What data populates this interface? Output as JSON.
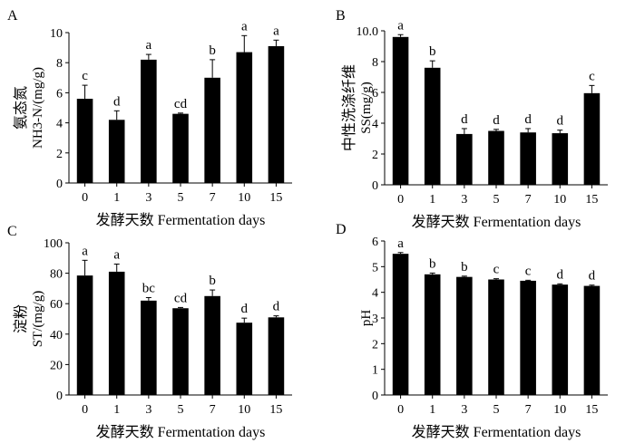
{
  "chart_data": [
    {
      "type": "bar",
      "panel_letter": "A",
      "ylabel_cn": "氨态氮",
      "ylabel_en": "NH3-N/(mg/g)",
      "xlabel": "发酵天数 Fermentation days",
      "categories": [
        "0",
        "1",
        "3",
        "5",
        "7",
        "10",
        "15"
      ],
      "values": [
        5.6,
        4.2,
        8.2,
        4.6,
        7.0,
        8.7,
        9.1
      ],
      "errors": [
        0.9,
        0.6,
        0.35,
        0.05,
        1.2,
        1.1,
        0.4
      ],
      "letters": [
        "c",
        "d",
        "a",
        "cd",
        "b",
        "a",
        "a"
      ],
      "ylim": [
        0,
        10
      ],
      "yticks": [
        "0",
        "2",
        "4",
        "6",
        "8",
        "10"
      ]
    },
    {
      "type": "bar",
      "panel_letter": "B",
      "ylabel_cn": "中性洗涤纤维",
      "ylabel_en": "SS(mg/g)",
      "xlabel": "发酵天数 Fermentation days",
      "categories": [
        "0",
        "1",
        "3",
        "5",
        "7",
        "10",
        "15"
      ],
      "values": [
        9.6,
        7.6,
        3.3,
        3.5,
        3.4,
        3.35,
        5.95
      ],
      "errors": [
        0.15,
        0.45,
        0.35,
        0.1,
        0.25,
        0.2,
        0.5
      ],
      "letters": [
        "a",
        "b",
        "d",
        "d",
        "d",
        "d",
        "c"
      ],
      "ylim": [
        0,
        10
      ],
      "yticks": [
        "0",
        "2",
        "4",
        "6",
        "8",
        "10.0"
      ]
    },
    {
      "type": "bar",
      "panel_letter": "C",
      "ylabel_cn": "淀粉",
      "ylabel_en": "ST/(mg/g)",
      "xlabel": "发酵天数 Fermentation days",
      "categories": [
        "0",
        "1",
        "3",
        "5",
        "7",
        "10",
        "15"
      ],
      "values": [
        78.5,
        81,
        62,
        57,
        65,
        47.5,
        51
      ],
      "errors": [
        10,
        5,
        2,
        0.5,
        4,
        3,
        1
      ],
      "letters": [
        "a",
        "a",
        "bc",
        "cd",
        "b",
        "d",
        "d"
      ],
      "ylim": [
        0,
        100
      ],
      "yticks": [
        "0",
        "20",
        "40",
        "60",
        "80",
        "100"
      ]
    },
    {
      "type": "bar",
      "panel_letter": "D",
      "ylabel_cn": "",
      "ylabel_en": "pH",
      "xlabel": "发酵天数 Fermentation days",
      "categories": [
        "0",
        "1",
        "3",
        "5",
        "7",
        "10",
        "15"
      ],
      "values": [
        5.5,
        4.7,
        4.6,
        4.5,
        4.45,
        4.3,
        4.25
      ],
      "errors": [
        0.05,
        0.05,
        0.03,
        0.03,
        0.02,
        0.03,
        0.03
      ],
      "letters": [
        "a",
        "b",
        "b",
        "c",
        "c",
        "d",
        "d"
      ],
      "ylim": [
        0,
        6
      ],
      "yticks": [
        "0",
        "1",
        "2",
        "3",
        "4",
        "5",
        "6"
      ]
    }
  ]
}
